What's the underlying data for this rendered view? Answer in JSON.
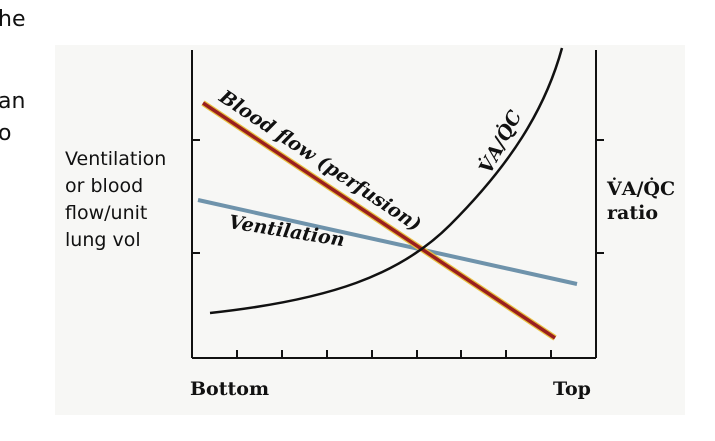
{
  "fragments": [
    "he",
    "an",
    "o"
  ],
  "left_label": [
    "Ventilation",
    "or blood",
    "flow/unit",
    "lung vol"
  ],
  "right_label": [
    "V̇A/Q̇C",
    "ratio"
  ],
  "x_labels": {
    "left": "Bottom",
    "right": "Top"
  },
  "curve_labels": {
    "blood_flow": "Blood flow (perfusion)",
    "ventilation": "Ventilation",
    "ratio": "V̇A/Q̇C"
  }
}
